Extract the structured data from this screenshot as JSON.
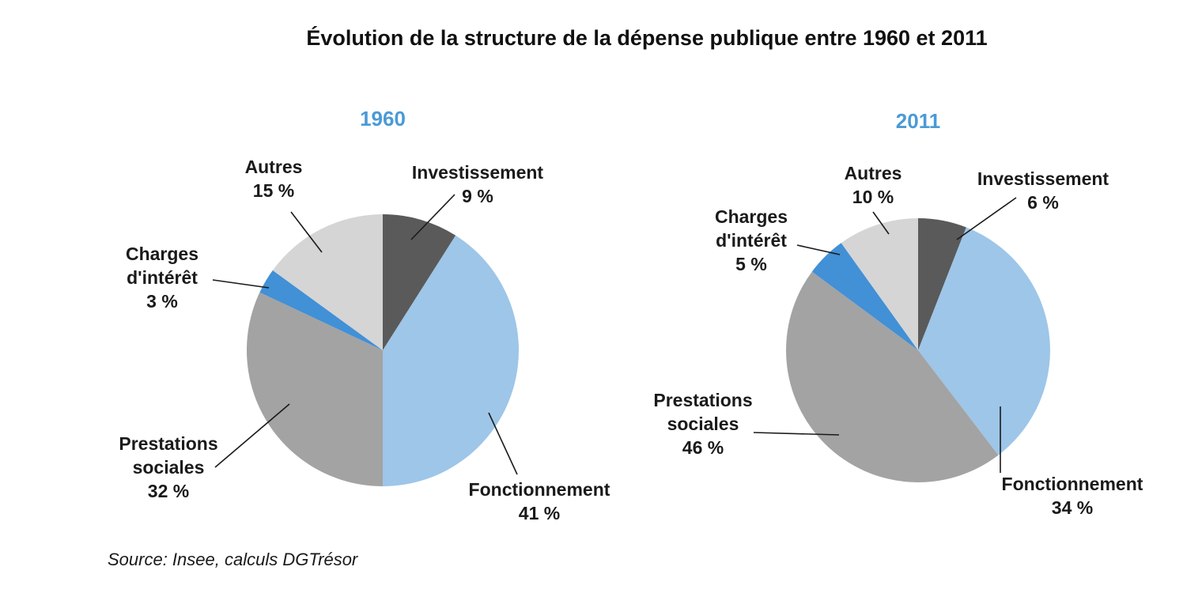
{
  "chart_data": {
    "title": "Évolution de la structure de la dépense publique entre 1960 et 2011",
    "source": "Source: Insee, calculs DGTrésor",
    "colors": {
      "title_year": "#4a9ad6"
    },
    "charts": [
      {
        "type": "pie",
        "title": "1960",
        "slices": [
          {
            "label": [
              "Investissement"
            ],
            "value": 9,
            "value_label": "9 %",
            "color": "#5a5a5a"
          },
          {
            "label": [
              "Fonctionnement"
            ],
            "value": 41,
            "value_label": "41 %",
            "color": "#9dc6e8"
          },
          {
            "label": [
              "Prestations",
              "sociales"
            ],
            "value": 32,
            "value_label": "32 %",
            "color": "#a3a3a3"
          },
          {
            "label": [
              "Charges",
              "d'intérêt"
            ],
            "value": 3,
            "value_label": "3 %",
            "color": "#4290d6"
          },
          {
            "label": [
              "Autres"
            ],
            "value": 15,
            "value_label": "15 %",
            "color": "#d5d5d5"
          }
        ]
      },
      {
        "type": "pie",
        "title": "2011",
        "slices": [
          {
            "label": [
              "Investissement"
            ],
            "value": 6,
            "value_label": "6 %",
            "color": "#5a5a5a"
          },
          {
            "label": [
              "Fonctionnement"
            ],
            "value": 34,
            "value_label": "34 %",
            "color": "#9dc6e8"
          },
          {
            "label": [
              "Prestations",
              "sociales"
            ],
            "value": 46,
            "value_label": "46 %",
            "color": "#a3a3a3"
          },
          {
            "label": [
              "Charges",
              "d'intérêt"
            ],
            "value": 5,
            "value_label": "5 %",
            "color": "#4290d6"
          },
          {
            "label": [
              "Autres"
            ],
            "value": 10,
            "value_label": "10 %",
            "color": "#d5d5d5"
          }
        ]
      }
    ]
  }
}
